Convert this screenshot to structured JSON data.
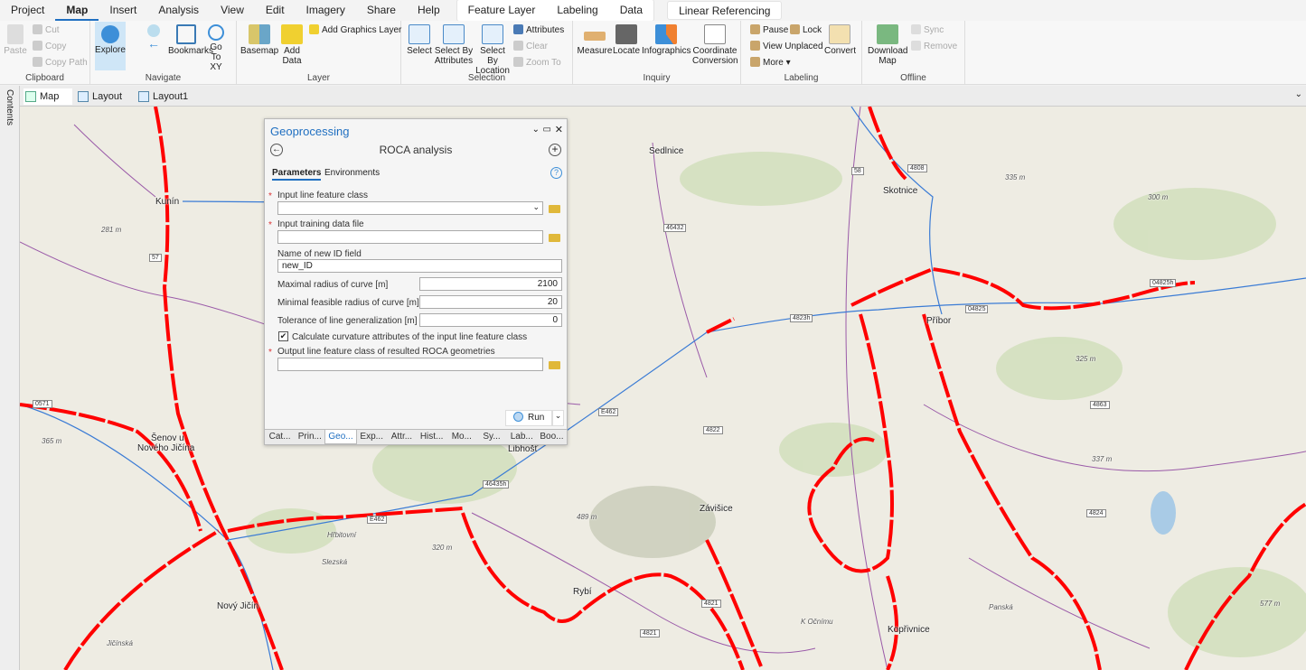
{
  "menubar": {
    "tabs": [
      "Project",
      "Map",
      "Insert",
      "Analysis",
      "View",
      "Edit",
      "Imagery",
      "Share",
      "Help"
    ],
    "contextual": [
      "Feature Layer",
      "Labeling",
      "Data"
    ],
    "linear": "Linear Referencing"
  },
  "ribbon": {
    "clipboard": {
      "label": "Clipboard",
      "paste": "Paste",
      "cut": "Cut",
      "copy": "Copy",
      "copy_path": "Copy Path"
    },
    "navigate": {
      "label": "Navigate",
      "explore": "Explore",
      "bookmarks": "Bookmarks",
      "goto": "Go To XY"
    },
    "layer": {
      "label": "Layer",
      "basemap": "Basemap",
      "add_data": "Add Data",
      "add_graphics": "Add Graphics Layer"
    },
    "selection": {
      "label": "Selection",
      "select": "Select",
      "by_attr": "Select By Attributes",
      "by_loc": "Select By Location",
      "attributes": "Attributes",
      "clear": "Clear",
      "zoom_to": "Zoom To"
    },
    "inquiry": {
      "label": "Inquiry",
      "measure": "Measure",
      "locate": "Locate",
      "infographics": "Infographics",
      "coord": "Coordinate Conversion"
    },
    "labeling": {
      "label": "Labeling",
      "pause": "Pause",
      "lock": "Lock",
      "view_unplaced": "View Unplaced",
      "more": "More",
      "convert": "Convert"
    },
    "offline": {
      "label": "Offline",
      "download": "Download Map",
      "sync": "Sync",
      "remove": "Remove"
    }
  },
  "doc_tabs": [
    "Map",
    "Layout",
    "Layout1"
  ],
  "side_tab": "Contents",
  "gp": {
    "title": "Geoprocessing",
    "tool": "ROCA analysis",
    "tab_params": "Parameters",
    "tab_env": "Environments",
    "p1": "Input line feature class",
    "p1_value": "",
    "p2": "Input training data file",
    "p2_value": "",
    "p3": "Name of new ID field",
    "p3_value": "new_ID",
    "p4": "Maximal radius of curve [m]",
    "p4_value": "2100",
    "p5": "Minimal feasible radius of curve [m]",
    "p5_value": "20",
    "p6": "Tolerance of line generalization [m]",
    "p6_value": "0",
    "p7": "Calculate curvature attributes of the input line feature class",
    "p7_checked": true,
    "p8": "Output line feature class of resulted ROCA geometries",
    "p8_value": "",
    "run": "Run",
    "bottom_tabs": [
      "Cat...",
      "Prin...",
      "Geo...",
      "Exp...",
      "Attr...",
      "Hist...",
      "Mo...",
      "Sy...",
      "Lab...",
      "Boo..."
    ]
  },
  "map": {
    "towns": [
      "Kunín",
      "Sedlnice",
      "Skotnice",
      "Příbor",
      "Šenov u",
      "Nového Jičína",
      "Libhošť",
      "Závišice",
      "Rybí",
      "Nový Jičín",
      "Kopřivnice"
    ],
    "elevations": [
      "281 m",
      "365 m",
      "320 m",
      "489 m",
      "335 m",
      "300 m",
      "325 m",
      "337 m",
      "577 m"
    ],
    "roads": [
      "E462",
      "E462",
      "4823h",
      "04825",
      "4863",
      "4824",
      "4821",
      "4822",
      "46432",
      "57",
      "58",
      "4808",
      "04825h",
      "46435h",
      "4821",
      "Hřbitovní",
      "Slezská",
      "Jičínská",
      "K Očnímu",
      "Panská",
      "0571"
    ]
  },
  "colors": {
    "accent": "#1f6fc1",
    "roca": "#ff0000",
    "highway": "#3a7bd5",
    "minor": "#8a4a9a"
  }
}
